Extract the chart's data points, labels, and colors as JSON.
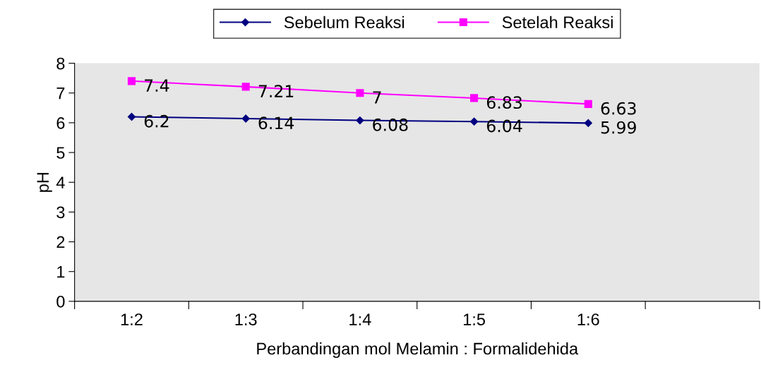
{
  "chart_data": {
    "type": "line",
    "xlabel": "Perbandingan mol Melamin : Formalidehida",
    "ylabel": "pH",
    "categories": [
      "1:2",
      "1:3",
      "1:4",
      "1:5",
      "1:6",
      null
    ],
    "series": [
      {
        "name": "Sebelum Reaksi",
        "color": "#000080",
        "marker": "diamond",
        "values": [
          6.2,
          6.14,
          6.08,
          6.04,
          5.99,
          null
        ]
      },
      {
        "name": "Setelah Reaksi",
        "color": "#ff00ff",
        "marker": "square",
        "values": [
          7.4,
          7.21,
          7,
          6.83,
          6.63,
          null
        ]
      }
    ],
    "ylim": [
      0,
      8
    ],
    "yticks": [
      0,
      1,
      2,
      3,
      4,
      5,
      6,
      7,
      8
    ],
    "data_labels": true,
    "legend": "top",
    "grid": false
  }
}
